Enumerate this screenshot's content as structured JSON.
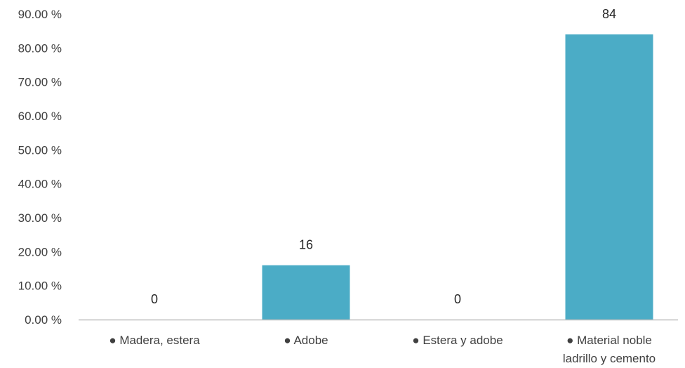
{
  "chart_data": {
    "type": "bar",
    "categories": [
      [
        "● Madera, estera"
      ],
      [
        "● Adobe"
      ],
      [
        "● Estera y adobe"
      ],
      [
        "● Material noble",
        "ladrillo y cemento"
      ]
    ],
    "values": [
      0,
      16,
      0,
      84
    ],
    "data_labels": [
      "0",
      "16",
      "0",
      "84"
    ],
    "y_ticks": [
      0,
      10,
      20,
      30,
      40,
      50,
      60,
      70,
      80,
      90
    ],
    "y_tick_labels": [
      "0.00 %",
      "10.00 %",
      "20.00 %",
      "30.00 %",
      "40.00 %",
      "50.00 %",
      "60.00 %",
      "70.00 %",
      "80.00 %",
      "90.00 %"
    ],
    "ylim": [
      0,
      90
    ],
    "grid": false,
    "legend": "none",
    "bar_color": "#4BACC6",
    "axis_color": "#BFBFBF"
  }
}
